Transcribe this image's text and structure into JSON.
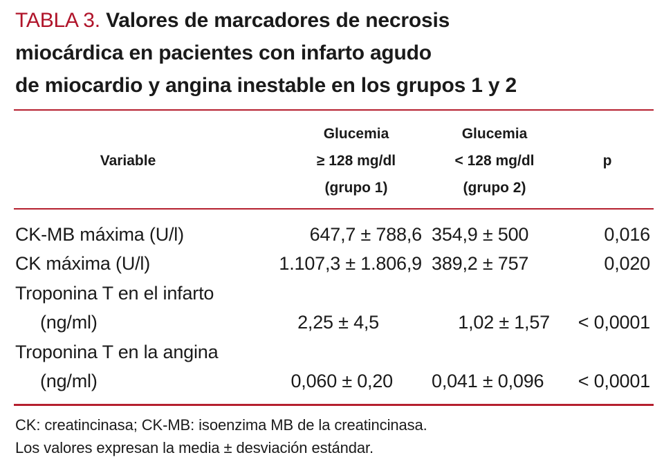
{
  "title": {
    "label": "TABLA 3.",
    "line1": "Valores de marcadores de necrosis",
    "line2": "miocárdica en pacientes con infarto agudo",
    "line3": "de miocardio y angina inestable en los grupos 1 y 2"
  },
  "header": {
    "variable": "Variable",
    "group1": [
      "Glucemia",
      "≥ 128 mg/dl",
      "(grupo 1)"
    ],
    "group2": [
      "Glucemia",
      "< 128 mg/dl",
      "(grupo 2)"
    ],
    "p": "p"
  },
  "rows": [
    {
      "variable": "CK-MB máxima (U/l)",
      "group1": "647,7 ± 788,6",
      "group2": "354,9 ± 500",
      "p": "0,016"
    },
    {
      "variable": "CK máxima (U/l)",
      "group1": "1.107,3 ± 1.806,9",
      "group2": "389,2 ± 757",
      "p": "0,020"
    },
    {
      "variable": "Troponina T en el infarto",
      "variable_cont": "(ng/ml)",
      "group1": "2,25 ± 4,5",
      "group2": "1,02 ± 1,57",
      "p": "< 0,0001"
    },
    {
      "variable": "Troponina T en la angina",
      "variable_cont": "(ng/ml)",
      "group1": "0,060 ± 0,20",
      "group2": "0,041 ± 0,096",
      "p": "< 0,0001"
    }
  ],
  "footnotes": [
    "CK: creatincinasa; CK-MB: isoenzima MB de la creatincinasa.",
    "Los valores expresan la media ± desviación estándar."
  ],
  "colors": {
    "accent": "#b51f2e",
    "label": "#b0142a",
    "text": "#1a1a1a"
  }
}
